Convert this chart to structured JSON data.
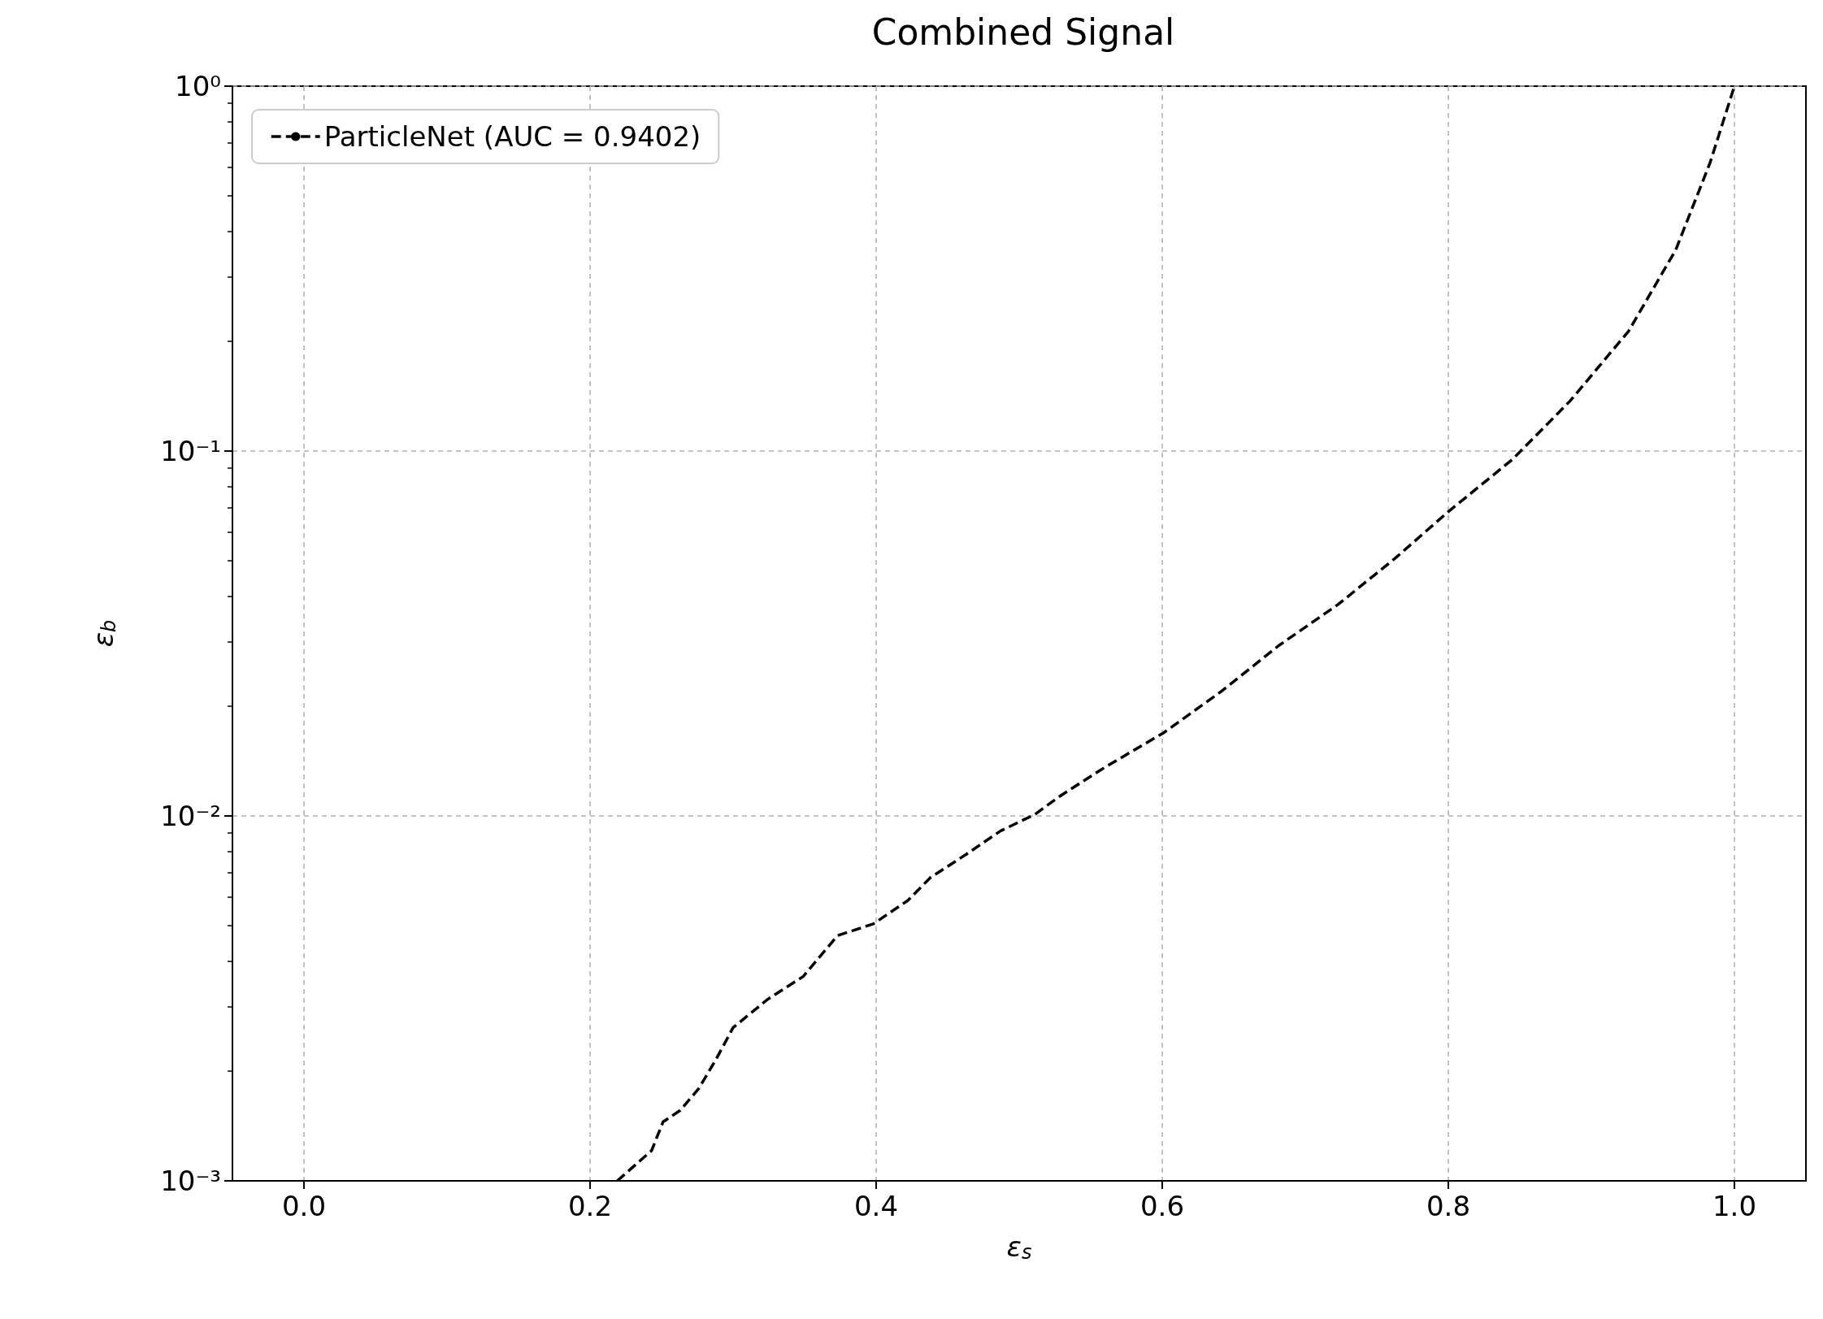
{
  "chart_data": {
    "type": "line",
    "title": "Combined Signal",
    "xlabel": "ε$_{s}$",
    "ylabel": "ε$_{b}$",
    "series": [
      {
        "name": "ParticleNet (AUC = 0.9402)",
        "color": "#000000",
        "line_style": "dashed",
        "x": [
          0.219,
          0.243,
          0.251,
          0.263,
          0.276,
          0.288,
          0.3,
          0.324,
          0.349,
          0.373,
          0.398,
          0.422,
          0.438,
          0.463,
          0.487,
          0.511,
          0.528,
          0.56,
          0.601,
          0.641,
          0.682,
          0.723,
          0.763,
          0.8,
          0.845,
          0.885,
          0.926,
          0.959,
          0.983,
          1.0
        ],
        "values": [
          0.001,
          0.00121,
          0.00145,
          0.00156,
          0.00179,
          0.00215,
          0.00263,
          0.00314,
          0.00363,
          0.0047,
          0.00506,
          0.00586,
          0.00678,
          0.00785,
          0.0091,
          0.0101,
          0.0113,
          0.0136,
          0.0169,
          0.0219,
          0.0294,
          0.038,
          0.0509,
          0.0682,
          0.095,
          0.137,
          0.213,
          0.356,
          0.617,
          1.0
        ]
      }
    ],
    "xlim": [
      -0.05,
      1.05
    ],
    "ylim": [
      0.001,
      1
    ],
    "log": "y",
    "xticks": [
      {
        "value": 0,
        "label": "0.0"
      },
      {
        "value": 0.2,
        "label": "0.2"
      },
      {
        "value": 0.4,
        "label": "0.4"
      },
      {
        "value": 0.6,
        "label": "0.6"
      },
      {
        "value": 0.8,
        "label": "0.8"
      },
      {
        "value": 1,
        "label": "1.0"
      }
    ],
    "yticks": [
      {
        "value": 0.001,
        "label": "10⁻³"
      },
      {
        "value": 0.01,
        "label": "10⁻²"
      },
      {
        "value": 0.1,
        "label": "10⁻¹"
      },
      {
        "value": 1,
        "label": "10⁰"
      }
    ],
    "grid": true,
    "legend": "top left",
    "marker": "none"
  }
}
